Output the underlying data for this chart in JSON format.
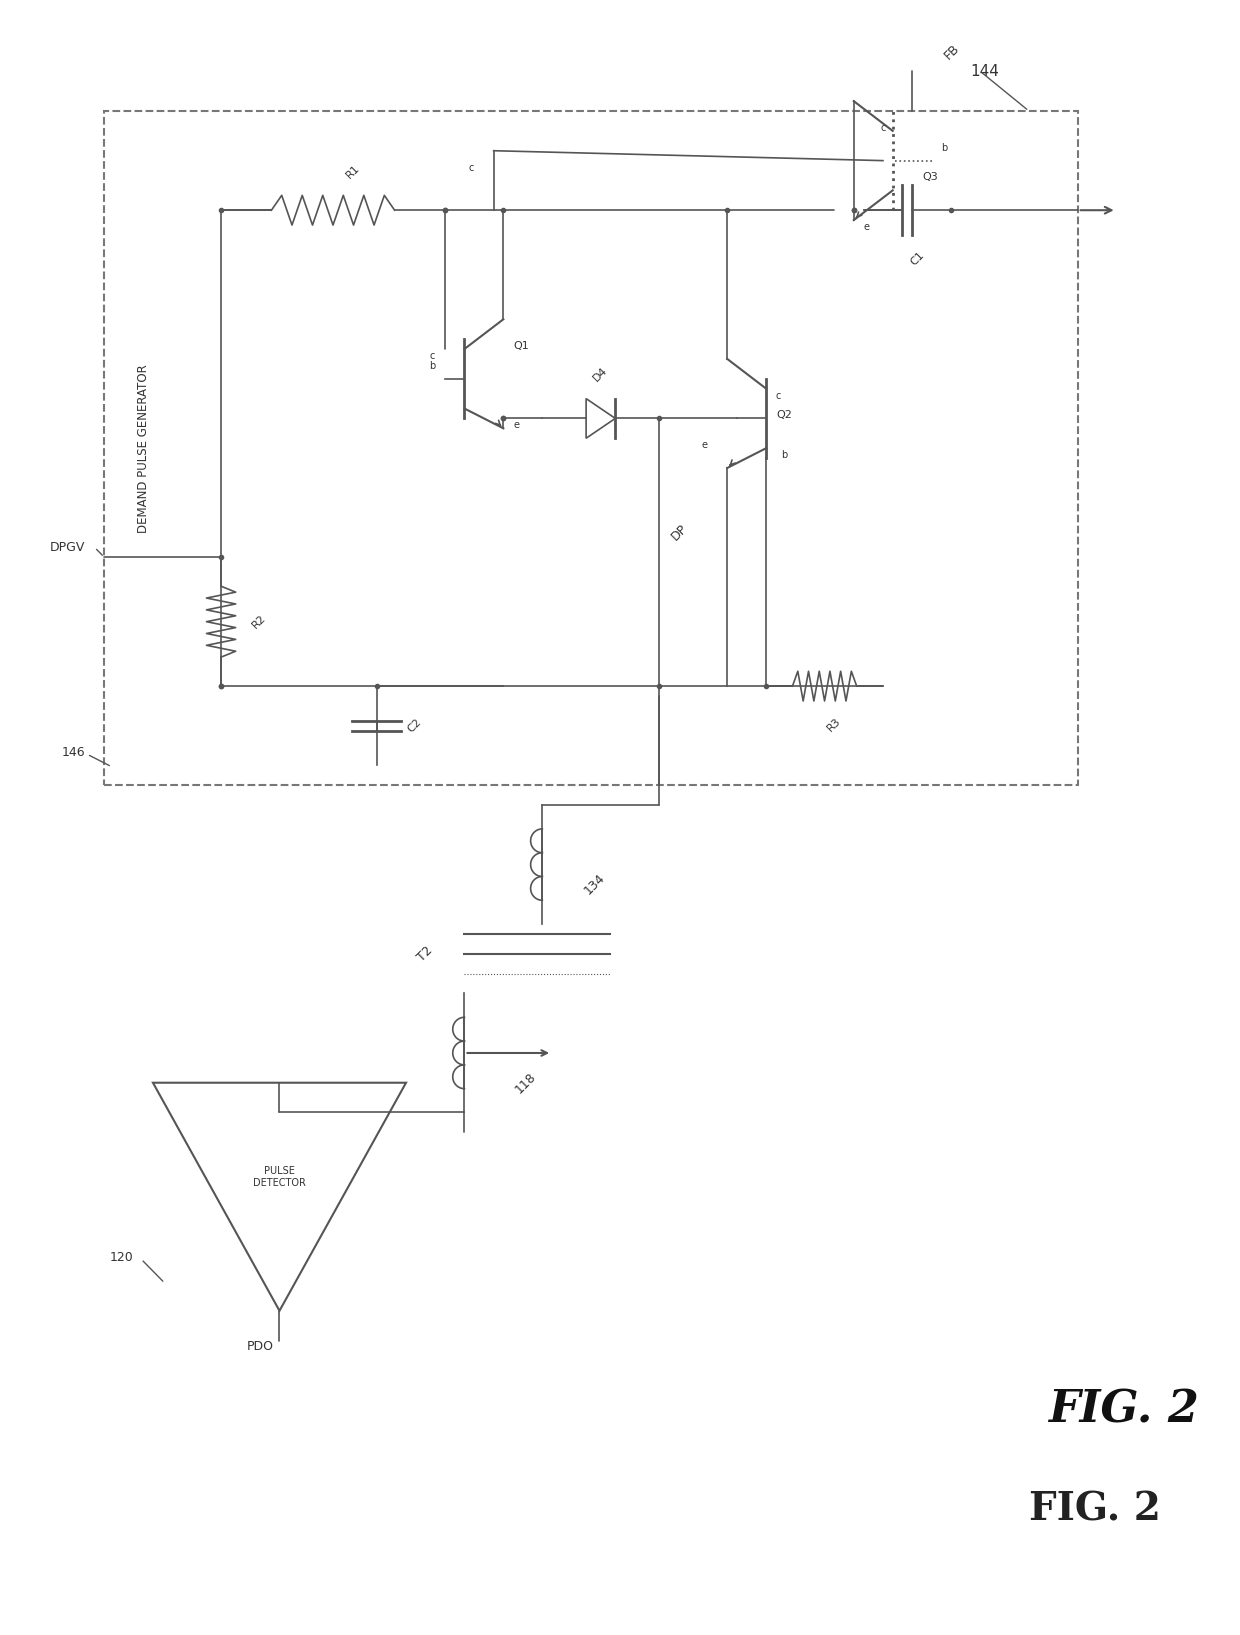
{
  "bg_color": "#ffffff",
  "line_color": "#555555",
  "text_color": "#333333",
  "fig_width": 12.4,
  "fig_height": 16.35,
  "title": "FIG. 2",
  "fig_label": "144",
  "label_146": "146",
  "label_120": "120",
  "label_134": "134",
  "label_118": "118",
  "label_T2": "T2",
  "label_PDO": "PDO",
  "label_PULSE_DETECTOR": "PULSE\nDETECTOR",
  "label_DPGV": "DPGV",
  "label_DEMAND_PULSE_GENERATOR": "DEMAND PULSE GENERATOR",
  "label_R1": "R1",
  "label_R2": "R2",
  "label_R3": "R3",
  "label_C1": "C1",
  "label_C2": "C2",
  "label_D4": "D4",
  "label_FB": "FB",
  "label_DP": "DP",
  "label_Q1_b": "b",
  "label_Q1_c": "c",
  "label_Q1_e": "e",
  "label_Q1": "Q1",
  "label_Q2_b": "b",
  "label_Q2_c": "c",
  "label_Q2_e": "e",
  "label_Q2": "Q2",
  "label_Q3_b": "b",
  "label_Q3_c": "c",
  "label_Q3_e": "e",
  "label_Q3": "Q3"
}
